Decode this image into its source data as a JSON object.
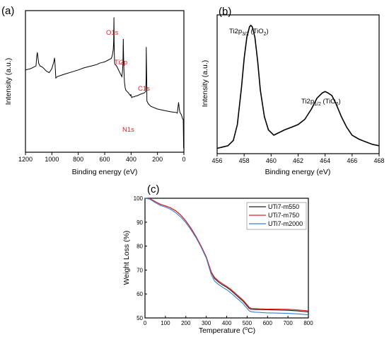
{
  "chart_data": [
    {
      "panel": "(a)",
      "type": "line",
      "xlabel": "Binding energy (eV)",
      "ylabel": "Intensity (a.u.)",
      "xlim": [
        1200,
        0
      ],
      "x_ticks": [
        "1200",
        "1000",
        "800",
        "600",
        "400",
        "200",
        "0"
      ],
      "annotations": [
        "O1s",
        "Ti2p",
        "C1s",
        "N1s"
      ],
      "annotation_color": "#e02020",
      "series": [
        {
          "x": [
            1200,
            1160,
            1120,
            1115,
            1110,
            1105,
            1100,
            1090,
            1070,
            1050,
            1040,
            1020,
            1000,
            985,
            980,
            975,
            970,
            960,
            930,
            900,
            850,
            800,
            760,
            740,
            720,
            700,
            680,
            660,
            640,
            620,
            600,
            580,
            570,
            560,
            550,
            545,
            540,
            535,
            532,
            530,
            528,
            526,
            524,
            520,
            510,
            500,
            490,
            480,
            470,
            465,
            462,
            459,
            457,
            455,
            452,
            450,
            445,
            440,
            430,
            420,
            410,
            405,
            402,
            400,
            398,
            395,
            390,
            380,
            370,
            350,
            330,
            300,
            290,
            286,
            285,
            284,
            282,
            280,
            270,
            250,
            200,
            150,
            100,
            60,
            50,
            45,
            40,
            35,
            30,
            20,
            10,
            5,
            2
          ],
          "y": [
            61,
            62,
            64,
            71,
            74,
            70,
            66,
            64,
            63,
            61,
            60,
            59,
            62,
            67,
            70,
            64,
            55,
            56,
            57,
            58,
            59.5,
            61,
            62.5,
            63,
            63.5,
            64,
            64.5,
            65,
            66,
            66.5,
            67,
            68,
            68.5,
            69,
            69.5,
            71,
            73,
            76,
            82,
            100,
            80,
            70,
            66,
            65,
            64,
            62,
            60,
            58,
            56,
            60,
            66,
            84,
            72,
            63,
            56,
            52,
            48,
            46,
            45,
            44,
            42.5,
            42,
            43,
            42,
            41.5,
            40.5,
            41,
            41,
            41.5,
            42,
            43,
            44,
            45,
            55,
            78,
            70,
            56,
            38,
            36,
            34,
            32,
            31,
            30,
            29.5,
            29,
            33,
            37,
            32,
            29.5,
            28,
            25,
            24,
            3
          ]
        }
      ]
    },
    {
      "panel": "(b)",
      "type": "line",
      "xlabel": "Binding energy (eV)",
      "ylabel": "Intensity (a.u.)",
      "xlim": [
        456,
        468
      ],
      "x_ticks": [
        "456",
        "458",
        "460",
        "462",
        "464",
        "466",
        "468"
      ],
      "annotations": [
        "Ti2p3/2 (TiO2)",
        "Ti2p1/2 (TiO2)"
      ],
      "series": [
        {
          "x": [
            456,
            456.4,
            456.8,
            457.2,
            457.5,
            457.8,
            458.0,
            458.2,
            458.4,
            458.5,
            458.6,
            458.8,
            459.0,
            459.2,
            459.5,
            459.8,
            460.2,
            460.6,
            461.0,
            461.5,
            462.0,
            462.5,
            463.0,
            463.4,
            463.8,
            464.0,
            464.2,
            464.5,
            464.8,
            465.2,
            465.6,
            466.0,
            466.5,
            467.0,
            467.5,
            468.0
          ],
          "y": [
            4,
            5,
            6,
            10,
            22,
            50,
            72,
            88,
            96,
            97,
            96,
            88,
            70,
            48,
            28,
            18,
            14,
            16,
            18,
            20,
            22,
            26,
            34,
            42,
            46,
            47,
            46,
            44,
            38,
            28,
            20,
            14,
            11,
            9,
            7,
            6
          ]
        }
      ]
    },
    {
      "panel": "(c)",
      "type": "line",
      "xlabel": "Temperature (°C)",
      "ylabel": "Weight Loss (%)",
      "xlim": [
        0,
        800
      ],
      "ylim": [
        50,
        100
      ],
      "x_ticks": [
        "0",
        "100",
        "200",
        "300",
        "400",
        "500",
        "600",
        "700",
        "800"
      ],
      "y_ticks": [
        "50",
        "60",
        "70",
        "80",
        "90",
        "100"
      ],
      "legend_position": "top-right",
      "series": [
        {
          "name": "UTi7-m550",
          "color": "#222222",
          "x": [
            0,
            25,
            50,
            75,
            100,
            125,
            150,
            175,
            200,
            225,
            250,
            275,
            300,
            325,
            340,
            360,
            380,
            400,
            420,
            440,
            460,
            480,
            500,
            510,
            520,
            540,
            560,
            580,
            600,
            650,
            700,
            750,
            800
          ],
          "y": [
            100,
            99.8,
            98.6,
            97.5,
            96.8,
            96.0,
            94.8,
            93.0,
            90.5,
            87.5,
            84.0,
            80.0,
            75.5,
            69.0,
            66.5,
            65.0,
            63.8,
            62.8,
            61.5,
            60.0,
            58.5,
            57.0,
            55.0,
            54.0,
            53.6,
            53.5,
            53.5,
            53.4,
            53.4,
            53.3,
            53.2,
            52.9,
            52.5
          ]
        },
        {
          "name": "UTi7-m750",
          "color": "#e02020",
          "x": [
            0,
            25,
            50,
            75,
            100,
            125,
            150,
            175,
            200,
            225,
            250,
            275,
            300,
            325,
            340,
            360,
            380,
            400,
            420,
            440,
            460,
            480,
            500,
            510,
            520,
            540,
            560,
            580,
            600,
            650,
            700,
            750,
            800
          ],
          "y": [
            100,
            99.8,
            98.6,
            97.5,
            96.8,
            96.0,
            94.8,
            93.0,
            90.5,
            87.5,
            84.0,
            80.0,
            75.5,
            69.2,
            67.0,
            65.5,
            64.3,
            63.2,
            62.0,
            60.5,
            59.0,
            57.5,
            55.5,
            54.5,
            54.0,
            53.9,
            53.8,
            53.8,
            53.7,
            53.7,
            53.6,
            53.3,
            53.0
          ]
        },
        {
          "name": "UTi7-m2000",
          "color": "#3a7fd5",
          "x": [
            0,
            25,
            50,
            75,
            100,
            125,
            150,
            175,
            200,
            225,
            250,
            275,
            300,
            325,
            340,
            360,
            380,
            400,
            420,
            440,
            460,
            480,
            500,
            510,
            520,
            540,
            560,
            580,
            600,
            650,
            700,
            750,
            800
          ],
          "y": [
            100,
            99.6,
            98.2,
            97.0,
            96.3,
            95.4,
            94.0,
            92.2,
            89.8,
            86.8,
            83.5,
            79.5,
            75.0,
            68.0,
            65.5,
            64.0,
            62.8,
            61.8,
            60.5,
            59.0,
            57.5,
            56.0,
            54.0,
            53.0,
            52.6,
            52.4,
            52.3,
            52.2,
            52.1,
            52.0,
            51.9,
            51.7,
            51.3
          ]
        }
      ]
    }
  ]
}
